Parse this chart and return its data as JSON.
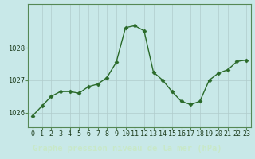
{
  "x": [
    0,
    1,
    2,
    3,
    4,
    5,
    6,
    7,
    8,
    9,
    10,
    11,
    12,
    13,
    14,
    15,
    16,
    17,
    18,
    19,
    20,
    21,
    22,
    23
  ],
  "y": [
    1025.9,
    1026.2,
    1026.5,
    1026.65,
    1026.65,
    1026.6,
    1026.8,
    1026.88,
    1027.08,
    1027.55,
    1028.62,
    1028.68,
    1028.52,
    1027.25,
    1027.0,
    1026.65,
    1026.35,
    1026.25,
    1026.35,
    1027.0,
    1027.22,
    1027.32,
    1027.58,
    1027.62
  ],
  "line_color": "#2a6a2a",
  "marker": "D",
  "marker_size": 2.5,
  "linewidth": 1.0,
  "bg_color": "#c8e8e8",
  "plot_bg_color": "#c8e8e8",
  "grid_color": "#b0cccc",
  "xlabel": "Graphe pression niveau de la mer (hPa)",
  "xlabel_fontsize": 7.5,
  "xlabel_bg": "#2a5a2a",
  "xlabel_text_color": "#c8e8c8",
  "yticks": [
    1026,
    1027,
    1028
  ],
  "ylim": [
    1025.55,
    1029.35
  ],
  "xlim": [
    -0.5,
    23.5
  ],
  "xtick_labels": [
    "0",
    "1",
    "2",
    "3",
    "4",
    "5",
    "6",
    "7",
    "8",
    "9",
    "10",
    "11",
    "12",
    "13",
    "14",
    "15",
    "16",
    "17",
    "18",
    "19",
    "20",
    "21",
    "22",
    "23"
  ],
  "tick_fontsize": 6.0,
  "tick_color": "#1a3a1a",
  "spine_color": "#558855"
}
